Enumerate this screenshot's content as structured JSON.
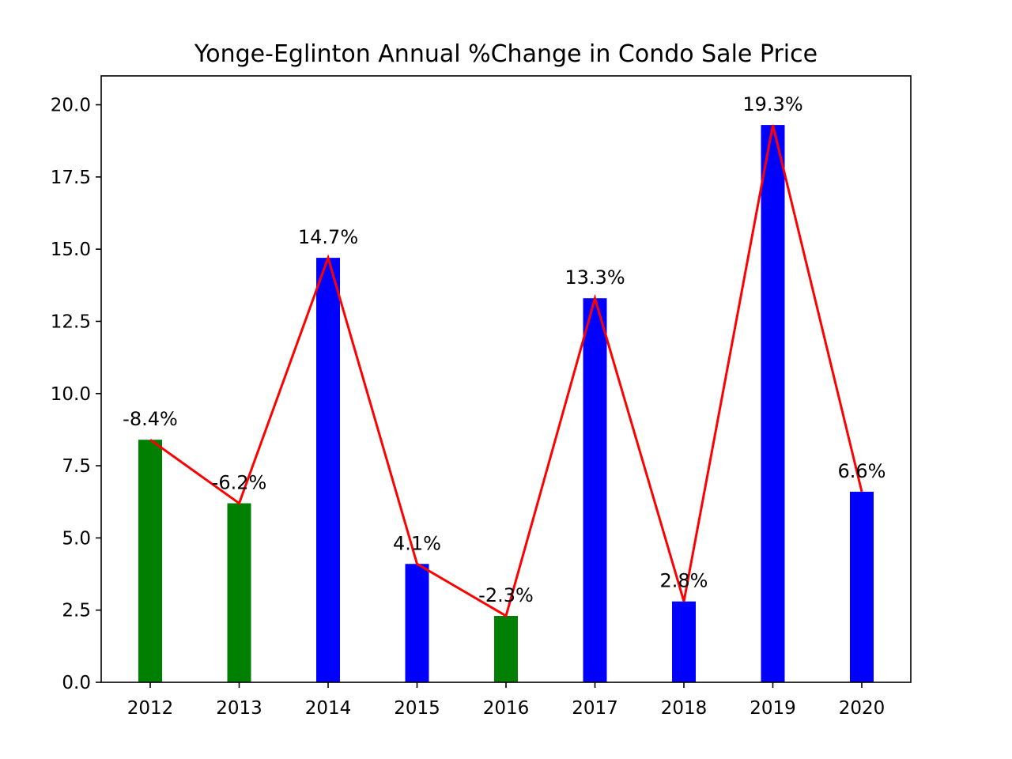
{
  "chart_data": {
    "type": "bar",
    "title": "Yonge-Eglinton Annual %Change in Condo Sale Price",
    "xlabel": "",
    "ylabel": "",
    "categories": [
      "2012",
      "2013",
      "2014",
      "2015",
      "2016",
      "2017",
      "2018",
      "2019",
      "2020"
    ],
    "values": [
      8.4,
      6.2,
      14.7,
      4.1,
      2.3,
      13.3,
      2.8,
      19.3,
      6.6
    ],
    "data_labels": [
      "-8.4%",
      "-6.2%",
      "14.7%",
      "4.1%",
      "-2.3%",
      "13.3%",
      "2.8%",
      "19.3%",
      "6.6%"
    ],
    "bar_colors": [
      "#008000",
      "#008000",
      "#0000ff",
      "#0000ff",
      "#008000",
      "#0000ff",
      "#0000ff",
      "#0000ff",
      "#0000ff"
    ],
    "overlay_line": {
      "type": "line",
      "color": "#ff0000",
      "values": [
        8.4,
        6.2,
        14.7,
        4.1,
        2.3,
        13.3,
        2.8,
        19.3,
        6.6
      ]
    },
    "ylim": [
      0,
      21
    ],
    "yticks": [
      0.0,
      2.5,
      5.0,
      7.5,
      10.0,
      12.5,
      15.0,
      17.5,
      20.0
    ],
    "ytick_labels": [
      "0.0",
      "2.5",
      "5.0",
      "7.5",
      "10.0",
      "12.5",
      "15.0",
      "17.5",
      "20.0"
    ],
    "grid": false,
    "legend": "none"
  }
}
